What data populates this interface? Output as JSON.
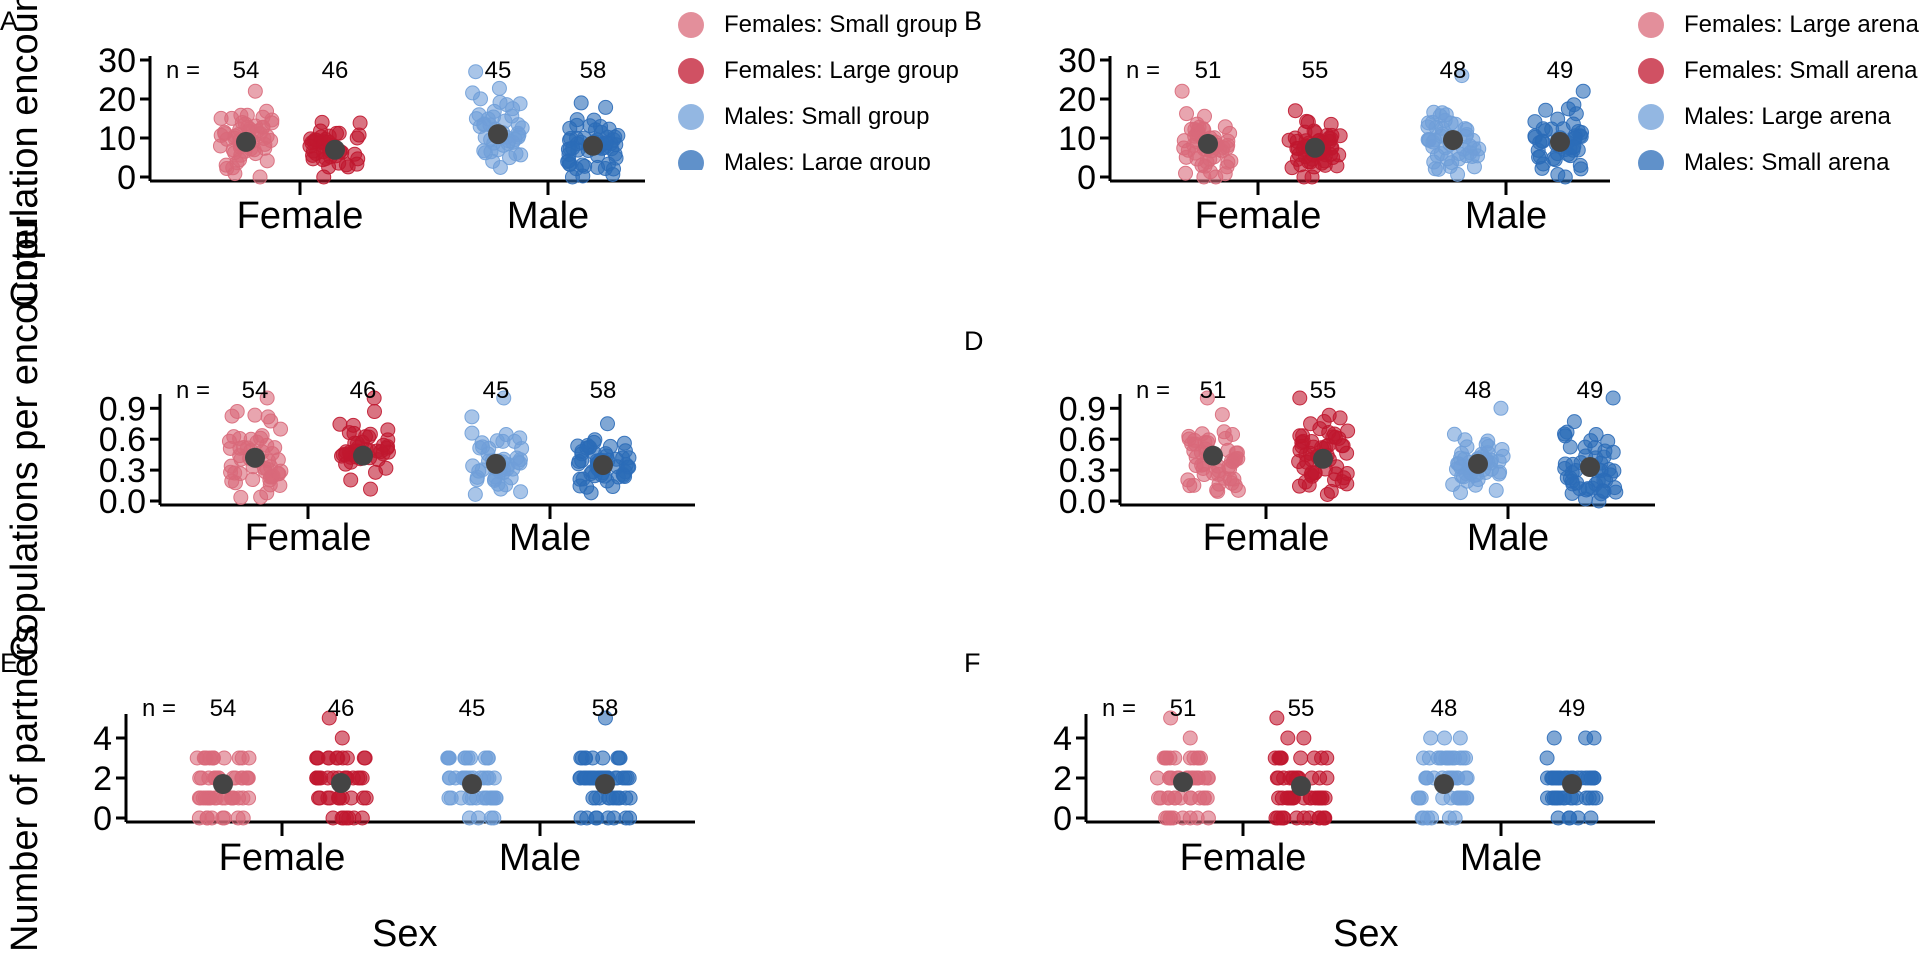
{
  "colors": {
    "female_light": "#d9697a",
    "female_dark": "#c0172f",
    "male_light": "#6f9fd8",
    "male_dark": "#2b6cb8",
    "mean": "#444444",
    "axis": "#000000"
  },
  "figure": {
    "ylabels": {
      "row1": "Copulation encounters",
      "row2": "Copulations per encounter",
      "row3": "Number of partners"
    },
    "xlabel": "Sex",
    "n_prefix": "n ="
  },
  "legends": {
    "left": [
      "Females: Small group",
      "Females: Large group",
      "Males: Small group",
      "Males: Large group"
    ],
    "right": [
      "Females: Large arena",
      "Females: Small arena",
      "Males: Large arena",
      "Males: Small arena"
    ]
  },
  "chart_data": [
    {
      "panel": "A",
      "type": "scatter",
      "categories": [
        "Female",
        "Male"
      ],
      "ylim": [
        0,
        30
      ],
      "yticks": [
        "0",
        "10",
        "20",
        "30"
      ],
      "groups": [
        {
          "name": "Females: Small group",
          "category": "Female",
          "n": "54",
          "mean": 9,
          "center": 9,
          "spread": 5,
          "max": 22
        },
        {
          "name": "Females: Large group",
          "category": "Female",
          "n": "46",
          "mean": 7,
          "center": 7,
          "spread": 3,
          "max": 14
        },
        {
          "name": "Males: Small group",
          "category": "Male",
          "n": "45",
          "mean": 11,
          "center": 11,
          "spread": 5,
          "max": 27
        },
        {
          "name": "Males: Large group",
          "category": "Male",
          "n": "58",
          "mean": 8,
          "center": 8,
          "spread": 4,
          "max": 19
        }
      ]
    },
    {
      "panel": "B",
      "type": "scatter",
      "categories": [
        "Female",
        "Male"
      ],
      "ylim": [
        0,
        30
      ],
      "yticks": [
        "0",
        "10",
        "20",
        "30"
      ],
      "groups": [
        {
          "name": "Females: Large arena",
          "category": "Female",
          "n": "51",
          "mean": 8.5,
          "center": 8,
          "spread": 4,
          "max": 22
        },
        {
          "name": "Females: Small arena",
          "category": "Female",
          "n": "55",
          "mean": 7.5,
          "center": 7,
          "spread": 3.5,
          "max": 17
        },
        {
          "name": "Males: Large arena",
          "category": "Male",
          "n": "48",
          "mean": 9.5,
          "center": 9,
          "spread": 4.5,
          "max": 26
        },
        {
          "name": "Males: Small arena",
          "category": "Male",
          "n": "49",
          "mean": 9,
          "center": 9,
          "spread": 4.5,
          "max": 22
        }
      ]
    },
    {
      "panel": "C",
      "type": "scatter",
      "categories": [
        "Female",
        "Male"
      ],
      "ylim": [
        0,
        1
      ],
      "yticks": [
        "0.0",
        "0.3",
        "0.6",
        "0.9"
      ],
      "groups": [
        {
          "name": "Females: Small group",
          "category": "Female",
          "n": "54",
          "mean": 0.42,
          "center": 0.4,
          "spread": 0.2,
          "max": 1.0
        },
        {
          "name": "Females: Large group",
          "category": "Female",
          "n": "46",
          "mean": 0.44,
          "center": 0.45,
          "spread": 0.17,
          "max": 1.0
        },
        {
          "name": "Males: Small group",
          "category": "Male",
          "n": "45",
          "mean": 0.36,
          "center": 0.33,
          "spread": 0.18,
          "max": 1.0
        },
        {
          "name": "Males: Large group",
          "category": "Male",
          "n": "58",
          "mean": 0.35,
          "center": 0.35,
          "spread": 0.13,
          "max": 0.75
        }
      ]
    },
    {
      "panel": "D",
      "type": "scatter",
      "categories": [
        "Female",
        "Male"
      ],
      "ylim": [
        0,
        1
      ],
      "yticks": [
        "0.0",
        "0.3",
        "0.6",
        "0.9"
      ],
      "groups": [
        {
          "name": "Females: Large arena",
          "category": "Female",
          "n": "51",
          "mean": 0.44,
          "center": 0.42,
          "spread": 0.18,
          "max": 1.0
        },
        {
          "name": "Females: Small arena",
          "category": "Female",
          "n": "55",
          "mean": 0.41,
          "center": 0.42,
          "spread": 0.18,
          "max": 1.0
        },
        {
          "name": "Males: Large arena",
          "category": "Male",
          "n": "48",
          "mean": 0.36,
          "center": 0.35,
          "spread": 0.15,
          "max": 0.9
        },
        {
          "name": "Males: Small arena",
          "category": "Male",
          "n": "49",
          "mean": 0.33,
          "center": 0.33,
          "spread": 0.15,
          "max": 1.0
        }
      ]
    },
    {
      "panel": "E",
      "type": "scatter",
      "integer": true,
      "categories": [
        "Female",
        "Male"
      ],
      "ylim": [
        0,
        5
      ],
      "yticks": [
        "0",
        "2",
        "4"
      ],
      "groups": [
        {
          "name": "Females: Small group",
          "category": "Female",
          "n": "54",
          "mean": 1.7,
          "center": 1.7,
          "spread": 1.0,
          "max": 3
        },
        {
          "name": "Females: Large group",
          "category": "Female",
          "n": "46",
          "mean": 1.75,
          "center": 1.7,
          "spread": 1.3,
          "max": 5
        },
        {
          "name": "Males: Small group",
          "category": "Male",
          "n": "45",
          "mean": 1.7,
          "center": 1.7,
          "spread": 0.9,
          "max": 3
        },
        {
          "name": "Males: Large group",
          "category": "Male",
          "n": "58",
          "mean": 1.7,
          "center": 1.6,
          "spread": 1.0,
          "max": 5
        }
      ]
    },
    {
      "panel": "F",
      "type": "scatter",
      "integer": true,
      "categories": [
        "Female",
        "Male"
      ],
      "ylim": [
        0,
        5
      ],
      "yticks": [
        "0",
        "2",
        "4"
      ],
      "groups": [
        {
          "name": "Females: Large arena",
          "category": "Female",
          "n": "51",
          "mean": 1.8,
          "center": 1.8,
          "spread": 1.0,
          "max": 5
        },
        {
          "name": "Females: Small arena",
          "category": "Female",
          "n": "55",
          "mean": 1.6,
          "center": 1.6,
          "spread": 1.1,
          "max": 5
        },
        {
          "name": "Males: Large arena",
          "category": "Male",
          "n": "48",
          "mean": 1.7,
          "center": 1.7,
          "spread": 1.0,
          "max": 4
        },
        {
          "name": "Males: Small arena",
          "category": "Male",
          "n": "49",
          "mean": 1.7,
          "center": 1.6,
          "spread": 0.9,
          "max": 4
        }
      ]
    }
  ]
}
